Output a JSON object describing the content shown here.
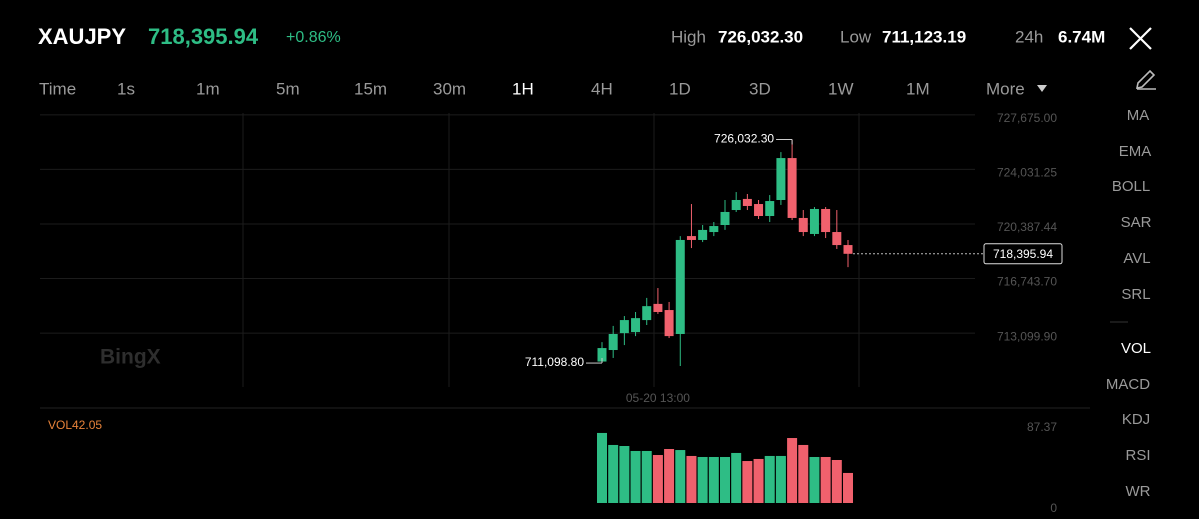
{
  "header": {
    "symbol": "XAUJPY",
    "price": "718,395.94",
    "change": "+0.86%",
    "high_label": "High",
    "high": "726,032.30",
    "low_label": "Low",
    "low": "711,123.19",
    "volume_label": "24h",
    "volume": "6.74M"
  },
  "intervals": [
    "Time",
    "1s",
    "1m",
    "5m",
    "15m",
    "30m",
    "1H",
    "4H",
    "1D",
    "3D",
    "1W",
    "1M",
    "More"
  ],
  "main_indicators": [
    "MA",
    "EMA",
    "BOLL",
    "SAR",
    "AVL",
    "SRL"
  ],
  "sub_indicators": [
    "VOL",
    "MACD",
    "KDJ",
    "RSI",
    "WR"
  ],
  "watermark": "BingX",
  "chart_data": [
    {
      "type": "candlestick",
      "categories": [
        null,
        null,
        null,
        null,
        null,
        "05-20 13:00",
        null,
        null,
        null,
        null,
        null,
        null,
        null,
        null,
        null,
        null,
        null,
        null,
        null,
        null,
        null,
        null,
        null
      ],
      "open": [
        711200,
        711970,
        713100,
        713170,
        713970,
        715050,
        714640,
        713040,
        719580,
        719320,
        719850,
        720320,
        721320,
        722060,
        721720,
        720920,
        721990,
        724790,
        720790,
        719720,
        721390,
        719850,
        718980
      ],
      "high": [
        712500,
        713580,
        714240,
        714510,
        715450,
        716110,
        715180,
        719580,
        721720,
        720320,
        720520,
        721990,
        722520,
        722390,
        721990,
        722320,
        725190,
        726032.3,
        721320,
        721520,
        721520,
        721320,
        719320
      ],
      "low": [
        711098.8,
        711440,
        712300,
        712900,
        713640,
        714380,
        712770,
        710900,
        718780,
        719180,
        719580,
        719990,
        721190,
        721320,
        720720,
        720520,
        721660,
        720650,
        719580,
        719580,
        719450,
        718720,
        717510
      ],
      "close": [
        712100,
        713040,
        713970,
        714100,
        714900,
        714510,
        712900,
        719320,
        719320,
        719990,
        720250,
        721190,
        721990,
        721590,
        720920,
        721920,
        724790,
        720790,
        719850,
        721390,
        719850,
        718980,
        718395.94
      ],
      "up_color": "#2ebd85",
      "down_color": "#f0616d",
      "ylim": [
        709500,
        727800
      ],
      "yticks": [
        {
          "value": 727675.0,
          "label": "727,675.00"
        },
        {
          "value": 724031.25,
          "label": "724,031.25"
        },
        {
          "value": 720387.44,
          "label": "720,387.44"
        },
        {
          "value": 716743.7,
          "label": "716,743.70"
        },
        {
          "value": 713099.9,
          "label": "713,099.90"
        }
      ],
      "grid": true,
      "annotations": [
        {
          "label": "726,032.30",
          "value": 726032.3
        },
        {
          "label": "711,098.80",
          "value": 711098.8
        }
      ],
      "last_price": {
        "label": "718,395.94",
        "value": 718395.94
      }
    },
    {
      "type": "bar",
      "title": "VOL42.05",
      "values": [
        81.6,
        67.6,
        66.4,
        60.6,
        60.6,
        55.9,
        62.9,
        61.7,
        54.8,
        53.6,
        53.6,
        53.6,
        58.3,
        48.9,
        51.3,
        54.8,
        54.8,
        75.7,
        67.6,
        53.6,
        53.6,
        50.1,
        35.0
      ],
      "ylim": [
        0,
        87.37
      ],
      "yticks": [
        0,
        87.37
      ]
    }
  ]
}
